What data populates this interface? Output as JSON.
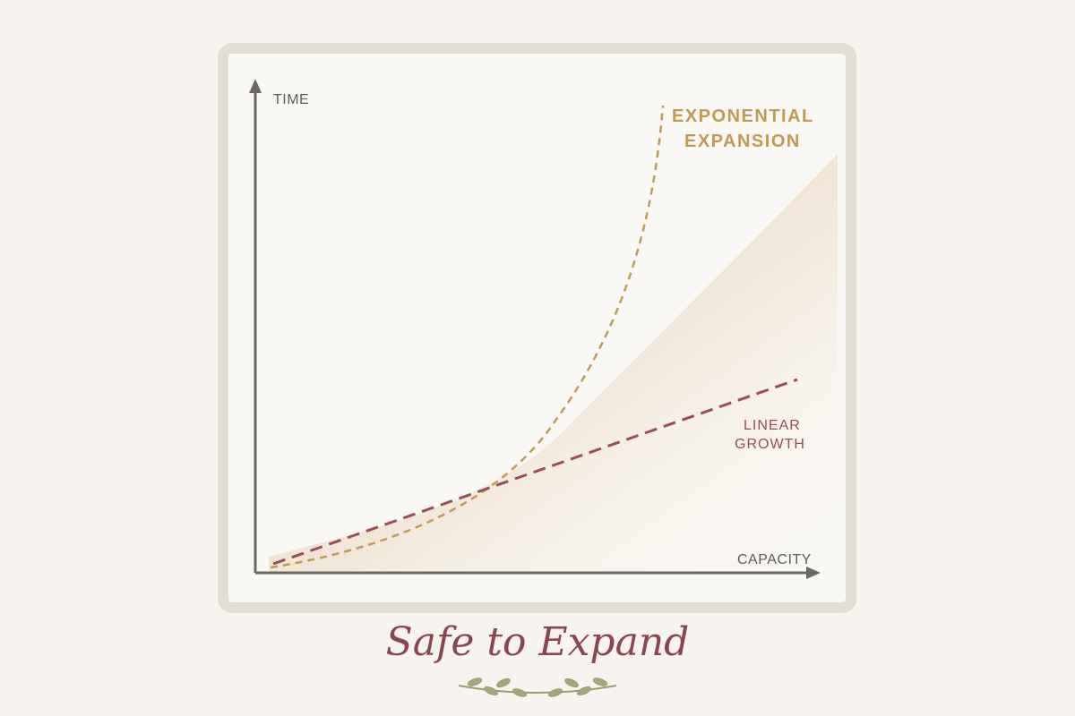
{
  "diagram": {
    "y_axis_label": "TIME",
    "x_axis_label": "CAPACITY",
    "exponential_label": [
      "EXPONENTIAL",
      "EXPANSION"
    ],
    "linear_label": [
      "LINEAR",
      "GROWTH"
    ]
  },
  "caption": "Safe to Expand",
  "colors": {
    "background": "#f7f4ef",
    "frame": "#e4ddd4",
    "axis": "#6b6763",
    "exponential": "#c19a52",
    "linear": "#9a4d55",
    "shade": "#e7d3b7",
    "caption": "#8a4650",
    "laurel": "#a2a877"
  },
  "icons": [
    "laurel-divider-icon"
  ]
}
